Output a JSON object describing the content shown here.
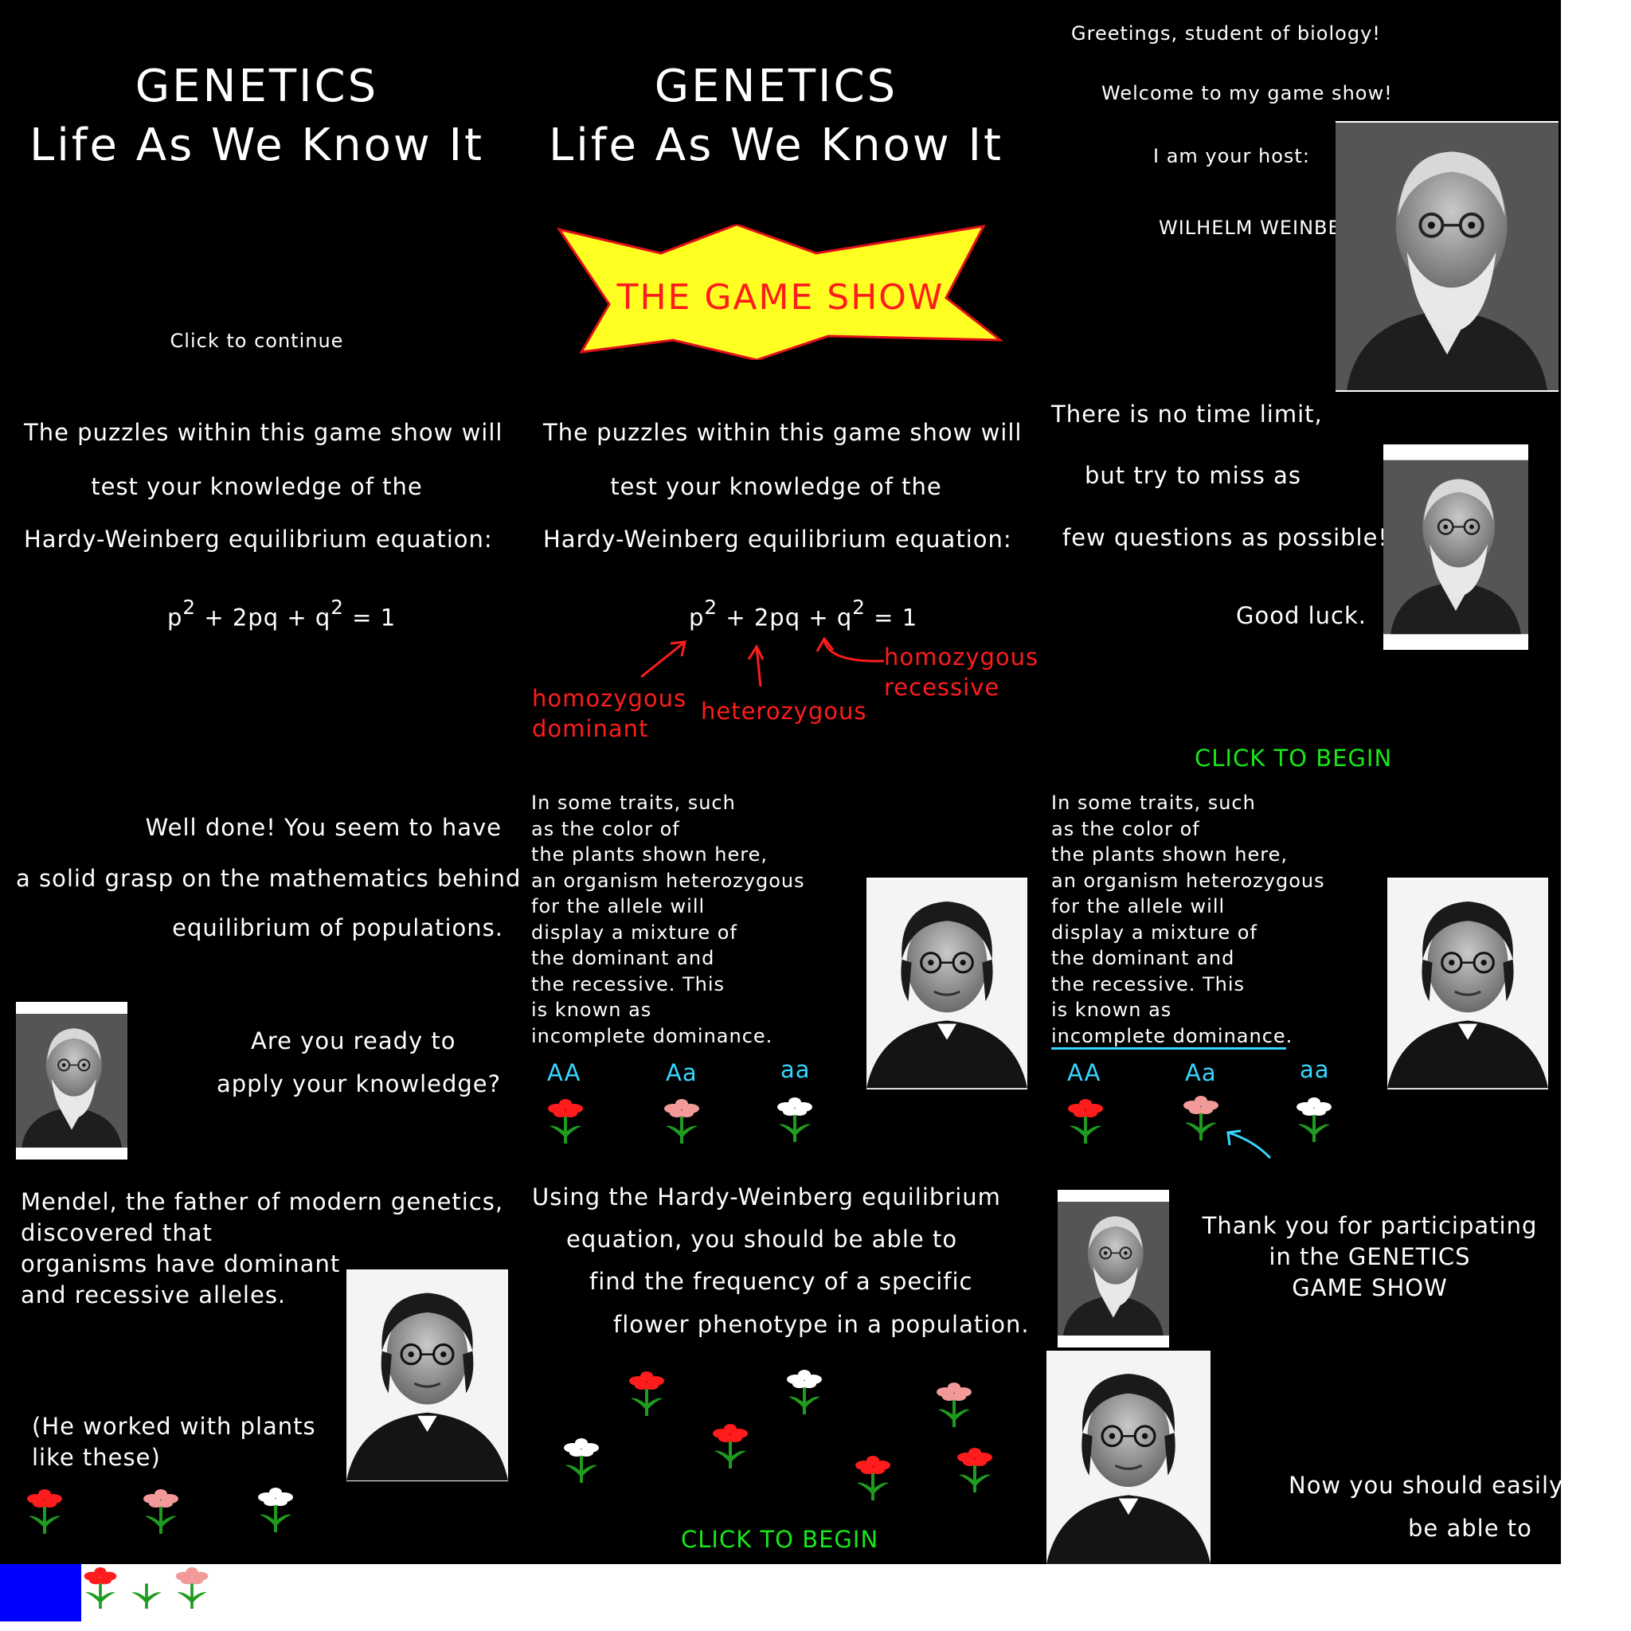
{
  "slides": {
    "s1": {
      "title_line1": "GENETICS",
      "title_line2": "Life As We Know It",
      "continue": "Click to continue"
    },
    "s2": {
      "title_line1": "GENETICS",
      "title_line2": "Life As We Know It",
      "badge": "THE GAME SHOW"
    },
    "s3": {
      "greeting": "Greetings, student of biology!",
      "welcome": "Welcome to my game show!",
      "host_intro": "I am your host:",
      "host_name": "WILHELM WEINBERG"
    },
    "s4": {
      "line1": "The puzzles within this game show will",
      "line2": "test your knowledge of the",
      "line3": "Hardy-Weinberg equilibrium equation:",
      "eq_p": "p",
      "eq_exp1": "2",
      "eq_mid": "+ 2pq + q",
      "eq_exp2": "2",
      "eq_end": "= 1"
    },
    "s5": {
      "line1": "The puzzles within this game show will",
      "line2": "test your knowledge of the",
      "line3": "Hardy-Weinberg equilibrium equation:",
      "eq_p": "p",
      "eq_exp1": "2",
      "eq_mid": "+ 2pq + q",
      "eq_exp2": "2",
      "eq_end": "= 1",
      "label_dom1": "homozygous",
      "label_dom2": "dominant",
      "label_het": "heterozygous",
      "label_rec1": "homozygous",
      "label_rec2": "recessive"
    },
    "s6": {
      "line1": "There is no time limit,",
      "line2": "but try to miss as",
      "line3": "few questions as possible!",
      "line4": "Good luck.",
      "begin": "CLICK TO BEGIN"
    },
    "s7": {
      "line1": "Well done! You seem to have",
      "line2": "a solid grasp on the mathematics behind",
      "line3": "equilibrium of populations.",
      "line4": "Are you ready to",
      "line5": "apply your knowledge?"
    },
    "s8": {
      "lines": [
        "In some traits, such",
        "as the color of",
        "the plants shown here,",
        "an organism heterozygous",
        "for the allele will",
        "display a mixture of",
        "the dominant and",
        "the recessive. This",
        "is known as",
        "incomplete dominance."
      ],
      "g1": "AA",
      "g2": "Aa",
      "g3": "aa"
    },
    "s9": {
      "lines": [
        "In some traits, such",
        "as the color of",
        "the plants shown here,",
        "an organism heterozygous",
        "for the allele will",
        "display a mixture of",
        "the dominant and",
        "the recessive. This",
        "is known as"
      ],
      "term": "incomplete dominance",
      "term_end": ".",
      "g1": "AA",
      "g2": "Aa",
      "g3": "aa"
    },
    "s10": {
      "line1": "Mendel, the father of modern genetics,",
      "line2": "discovered that",
      "line3": "organisms have dominant",
      "line4": "and recessive alleles.",
      "line5": "(He worked with plants",
      "line6": "like these)"
    },
    "s11": {
      "line1": "Using the Hardy-Weinberg equilibrium",
      "line2": "equation, you should be able to",
      "line3": "find the frequency of a specific",
      "line4": "flower phenotype in a population.",
      "begin": "CLICK TO BEGIN"
    },
    "s12": {
      "line1": "Thank you for participating",
      "line2": "in the GENETICS",
      "line3": "GAME SHOW",
      "line4": "Now you should easily",
      "line5": "be able to"
    }
  },
  "colors": {
    "background": "#000000",
    "text": "#ffffff",
    "red": "#ff1c1c",
    "green": "#19e619",
    "cyan": "#37d6ff",
    "badge_fill": "#ffff22",
    "page": "#ffffff",
    "blue_block": "#0000ff"
  },
  "icons": [
    "weinberg-portrait",
    "mendel-portrait",
    "red-flower-icon",
    "pink-flower-icon",
    "white-flower-icon",
    "arrow-icon",
    "star-burst-badge"
  ]
}
